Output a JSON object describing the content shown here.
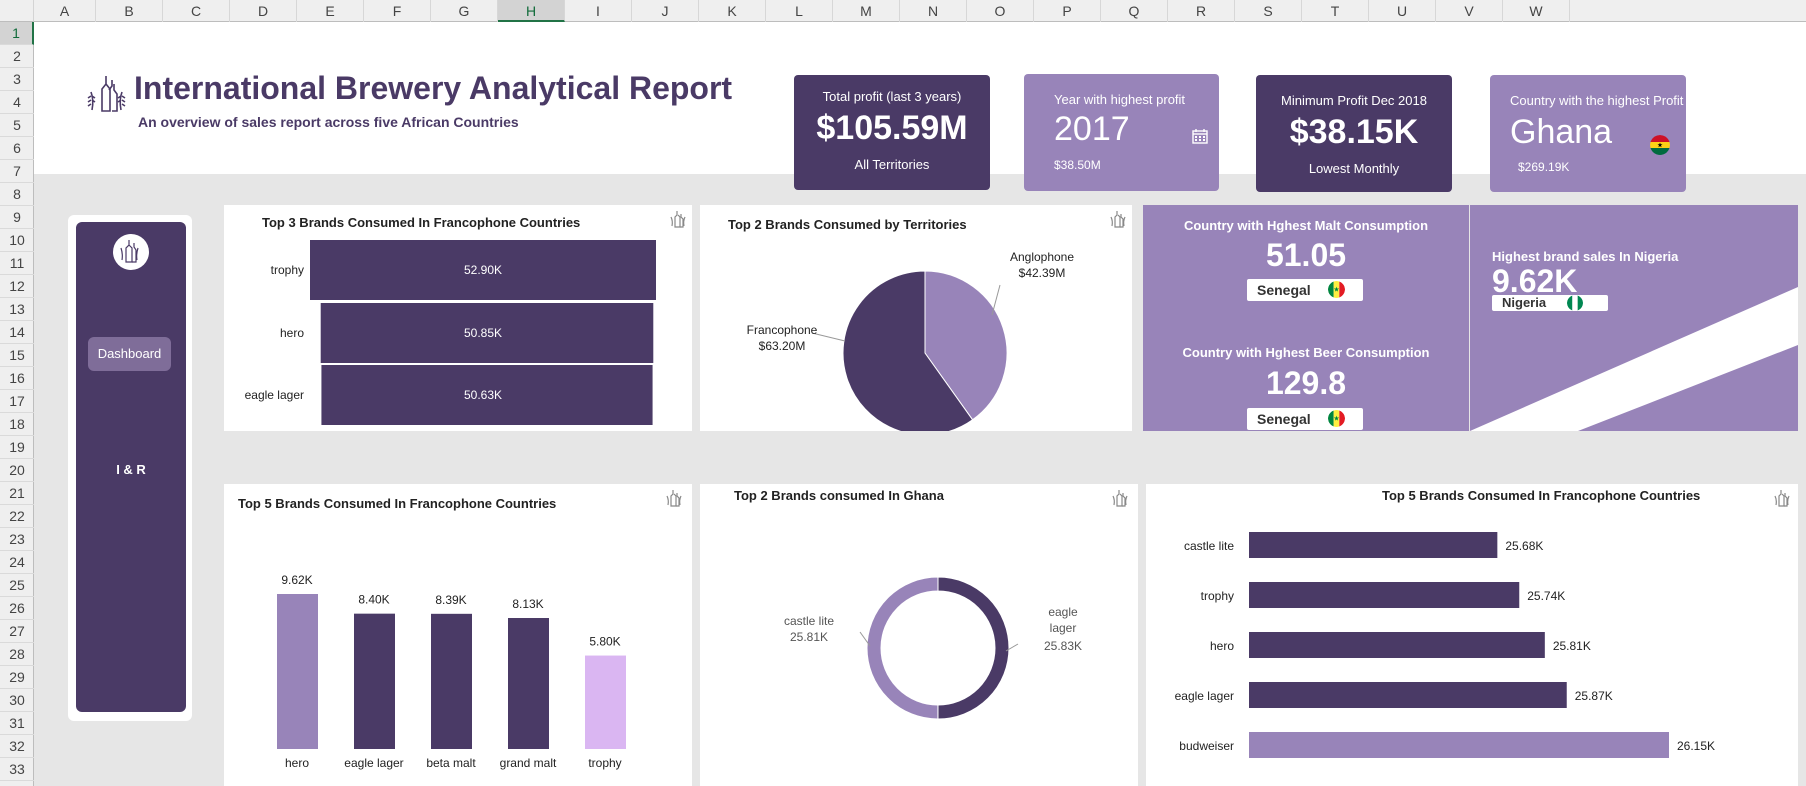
{
  "sheet": {
    "columns": [
      "A",
      "B",
      "C",
      "D",
      "E",
      "F",
      "G",
      "H",
      "I",
      "J",
      "K",
      "L",
      "M",
      "N",
      "O",
      "P",
      "Q",
      "R",
      "S",
      "T",
      "U",
      "V",
      "W"
    ],
    "rows": [
      "1",
      "2",
      "3",
      "4",
      "5",
      "6",
      "7",
      "8",
      "9",
      "10",
      "11",
      "12",
      "13",
      "14",
      "15",
      "16",
      "17",
      "18",
      "19",
      "20",
      "21",
      "22",
      "23",
      "24",
      "25",
      "26",
      "27",
      "28",
      "29",
      "30",
      "31",
      "32",
      "33"
    ],
    "selected_column": "H",
    "selected_row": "1"
  },
  "header": {
    "title": "International Brewery Analytical Report",
    "subtitle": "An overview of sales report across five African Countries",
    "logo_icon": "beer-bottles-icon"
  },
  "kpis": {
    "total_profit": {
      "label": "Total profit (last 3 years)",
      "value": "$105.59M",
      "sub": "All Territories"
    },
    "highest_year": {
      "label": "Year with highest profit",
      "value": "2017",
      "sub": "$38.50M",
      "icon": "calendar-icon"
    },
    "min_profit": {
      "label": "Minimum Profit Dec 2018",
      "value": "$38.15K",
      "sub": "Lowest Monthly"
    },
    "top_country": {
      "label": "Country with the highest Profit",
      "value": "Ghana",
      "sub": "$269.19K",
      "icon": "ghana-flag-icon"
    }
  },
  "nav": {
    "dashboard": "Dashboard",
    "ir": "I & R"
  },
  "colors": {
    "dark_purple": "#4a3a66",
    "light_purple": "#9884b9",
    "lilac": "#dab6f2",
    "nav_active": "#7f6d99"
  },
  "stats": {
    "malt": {
      "label": "Country with Hghest Malt Consumption",
      "value": "51.05",
      "country": "Senegal",
      "icon": "senegal-flag-icon"
    },
    "beer": {
      "label": "Country with Hghest Beer Consumption",
      "value": "129.8",
      "country": "Senegal",
      "icon": "senegal-flag-icon"
    },
    "nigeria": {
      "label": "Highest brand sales In Nigeria",
      "value": "9.62K",
      "country": "Nigeria",
      "icon": "nigeria-flag-icon"
    }
  },
  "chart_data": [
    {
      "id": "top3-franco",
      "type": "bar",
      "orientation": "horizontal",
      "title": "Top 3 Brands Consumed In Francophone Countries",
      "categories": [
        "trophy",
        "hero",
        "eagle lager"
      ],
      "values": [
        52.9,
        50.85,
        50.63
      ],
      "labels": [
        "52.90K",
        "50.85K",
        "50.63K"
      ],
      "units": "K"
    },
    {
      "id": "territories-pie",
      "type": "pie",
      "title": "Top 2 Brands Consumed by Territories",
      "slices": [
        {
          "name": "Anglophone",
          "label": "$42.39M",
          "value": 42.39
        },
        {
          "name": "Francophone",
          "label": "$63.20M",
          "value": 63.2
        }
      ]
    },
    {
      "id": "top5-franco-col",
      "type": "bar",
      "orientation": "vertical",
      "title": "Top 5 Brands Consumed In Francophone Countries",
      "categories": [
        "hero",
        "eagle lager",
        "beta malt",
        "grand malt",
        "trophy"
      ],
      "values": [
        9.62,
        8.4,
        8.39,
        8.13,
        5.8
      ],
      "labels": [
        "9.62K",
        "8.40K",
        "8.39K",
        "8.13K",
        "5.80K"
      ],
      "units": "K"
    },
    {
      "id": "ghana-donut",
      "type": "pie",
      "variant": "donut",
      "title": "Top 2 Brands consumed In Ghana",
      "slices": [
        {
          "name": "eagle lager",
          "label": "25.83K",
          "value": 25.83
        },
        {
          "name": "castle lite",
          "label": "25.81K",
          "value": 25.81
        }
      ]
    },
    {
      "id": "top5-franco-bar",
      "type": "bar",
      "orientation": "horizontal",
      "title": "Top 5 Brands Consumed In Francophone Countries",
      "categories": [
        "castle lite",
        "trophy",
        "hero",
        "eagle lager",
        "budweiser"
      ],
      "values": [
        25.68,
        25.74,
        25.81,
        25.87,
        26.15
      ],
      "labels": [
        "25.68K",
        "25.74K",
        "25.81K",
        "25.87K",
        "26.15K"
      ],
      "units": "K"
    }
  ]
}
